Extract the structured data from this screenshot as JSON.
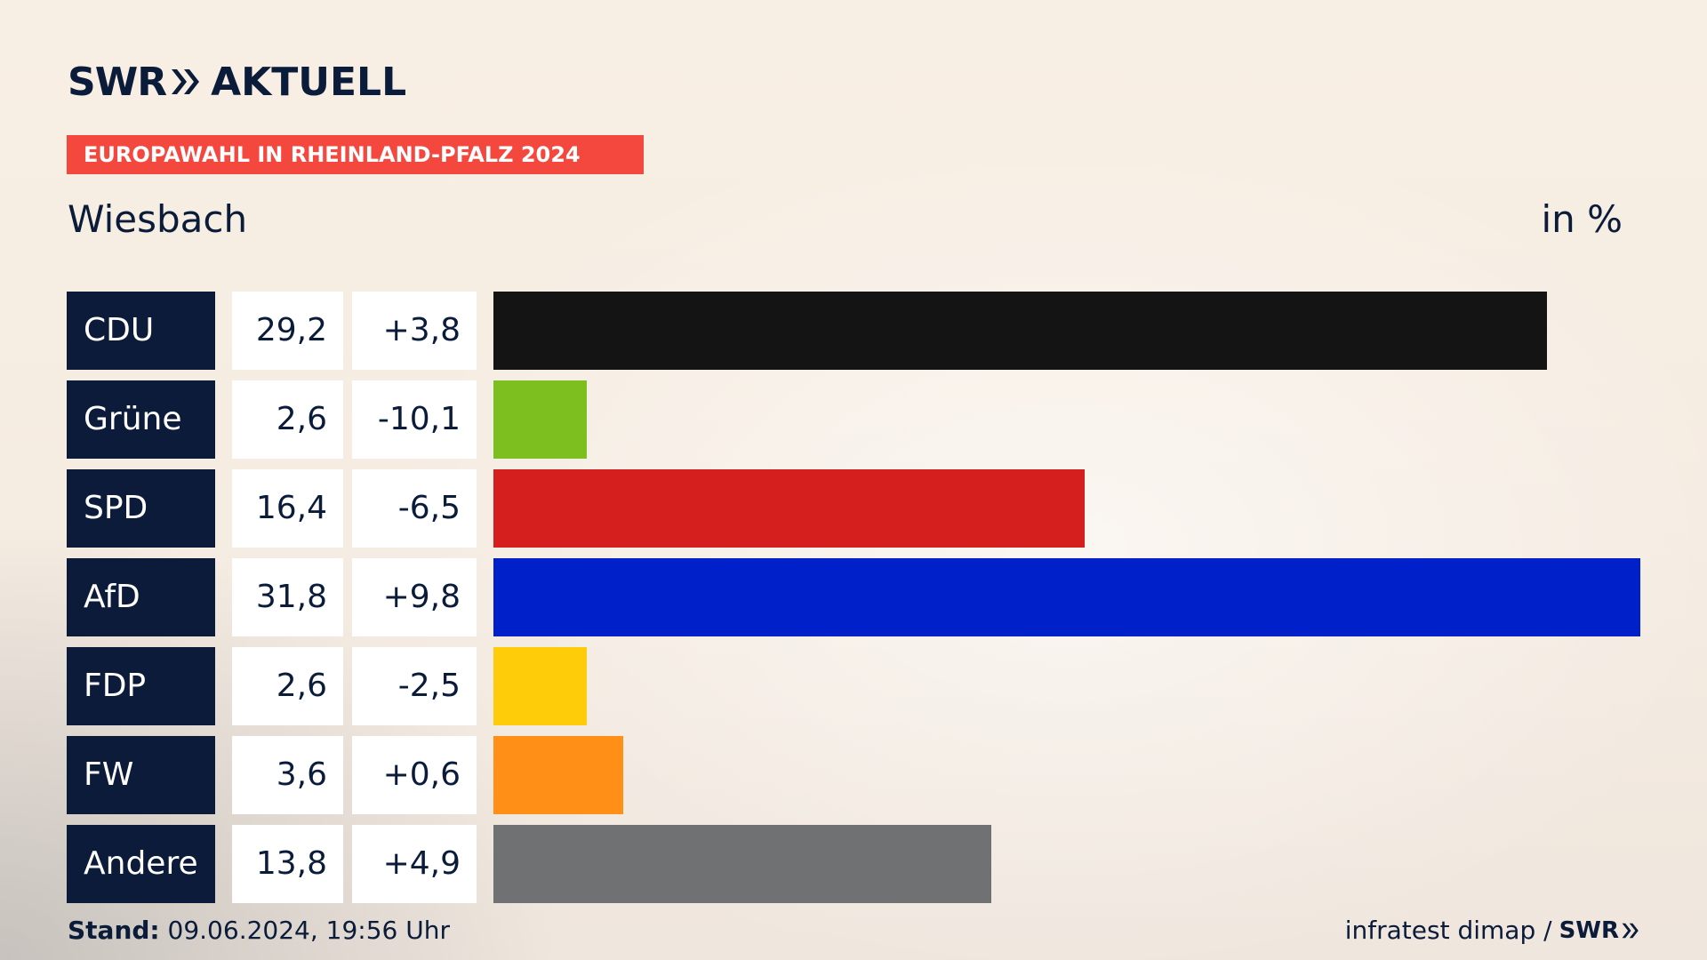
{
  "header": {
    "logo_brand": "SWR",
    "logo_product": "AKTUELL",
    "banner": "EUROPAWAHL IN RHEINLAND-PFALZ 2024",
    "place": "Wiesbach",
    "unit": "in %"
  },
  "footer": {
    "stand_label": "Stand:",
    "stand_value": "09.06.2024, 19:56 Uhr",
    "source": "infratest dimap /",
    "source_logo": "SWR"
  },
  "colors": {
    "banner": "#f4483e",
    "party_bg": "#0d1b3a",
    "CDU": "#141414",
    "Grüne": "#7cbf1e",
    "SPD": "#d51f1f",
    "AfD": "#0021c9",
    "FDP": "#ffcc0a",
    "FW": "#ff8f17",
    "Andere": "#707173"
  },
  "chart_data": {
    "type": "bar",
    "title": "Wiesbach",
    "ylabel": "in %",
    "categories": [
      "CDU",
      "Grüne",
      "SPD",
      "AfD",
      "FDP",
      "FW",
      "Andere"
    ],
    "values": [
      29.2,
      2.6,
      16.4,
      31.8,
      2.6,
      3.6,
      13.8
    ],
    "values_label": [
      "29,2",
      "2,6",
      "16,4",
      "31,8",
      "2,6",
      "3,6",
      "13,8"
    ],
    "change": [
      3.8,
      -10.1,
      -6.5,
      9.8,
      -2.5,
      0.6,
      4.9
    ],
    "change_label": [
      "+3,8",
      "-10,1",
      "-6,5",
      "+9,8",
      "-2,5",
      "+0,6",
      "+4,9"
    ]
  }
}
